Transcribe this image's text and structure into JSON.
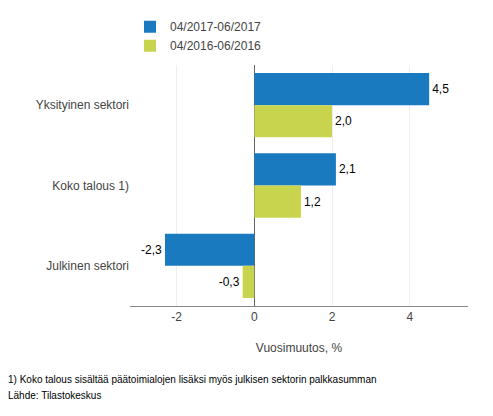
{
  "chart_data": {
    "type": "bar",
    "orientation": "horizontal",
    "categories": [
      "Yksityinen sektori",
      "Koko talous 1)",
      "Julkinen sektori"
    ],
    "series": [
      {
        "name": "04/2017-06/2017",
        "color": "#1a7abf",
        "values": [
          4.5,
          2.1,
          -2.3
        ],
        "value_labels": [
          "4,5",
          "2,1",
          "-2,3"
        ]
      },
      {
        "name": "04/2016-06/2016",
        "color": "#c8d44e",
        "values": [
          2.0,
          1.2,
          -0.3
        ],
        "value_labels": [
          "2,0",
          "1,2",
          "-0,3"
        ]
      }
    ],
    "x_label": "Vuosimuutos, %",
    "xlim": [
      -3.2,
      5.5
    ],
    "xticks": [
      -2,
      0,
      2,
      4
    ],
    "grid": true,
    "legend": "upper left",
    "data_labels": true,
    "annotations": [
      "1) Koko talous sisältää päätoimialojen lisäksi myös julkisen sektorin palkkasumman",
      "Lähde: Tilastokeskus"
    ]
  }
}
